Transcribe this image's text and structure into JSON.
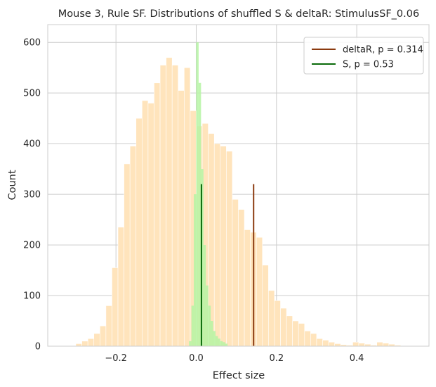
{
  "chart_data": {
    "type": "histogram",
    "title": "Mouse 3, Rule SF. Distributions of shuffled S & deltaR: StimulusSF_0.06",
    "xlabel": "Effect size",
    "ylabel": "Count",
    "xlim": [
      -0.37,
      0.58
    ],
    "ylim": [
      0,
      635
    ],
    "xticks": [
      -0.2,
      0.0,
      0.2,
      0.4
    ],
    "xtick_labels": [
      "−0.2",
      "0.0",
      "0.2",
      "0.4"
    ],
    "yticks": [
      0,
      100,
      200,
      300,
      400,
      500,
      600
    ],
    "ytick_labels": [
      "0",
      "100",
      "200",
      "300",
      "400",
      "500",
      "600"
    ],
    "grid": true,
    "legend_position": "top-right",
    "colors": {
      "deltaR_hist": "#ffe4bc",
      "S_hist": "#b5f5a3",
      "deltaR_line": "#8b3a0f",
      "S_line": "#0a6a0a",
      "grid": "#cccccc",
      "axes_edge": "#cccccc"
    },
    "series": [
      {
        "name": "deltaR, p = 0.314",
        "kind": "histogram",
        "bin_edges": [
          -0.3,
          -0.285,
          -0.27,
          -0.255,
          -0.24,
          -0.225,
          -0.21,
          -0.195,
          -0.18,
          -0.165,
          -0.15,
          -0.135,
          -0.12,
          -0.105,
          -0.09,
          -0.075,
          -0.06,
          -0.045,
          -0.03,
          -0.015,
          0.0,
          0.015,
          0.03,
          0.045,
          0.06,
          0.075,
          0.09,
          0.105,
          0.12,
          0.135,
          0.15,
          0.165,
          0.18,
          0.195,
          0.21,
          0.225,
          0.24,
          0.255,
          0.27,
          0.285,
          0.3,
          0.315,
          0.33,
          0.345,
          0.36,
          0.375,
          0.39,
          0.405,
          0.42,
          0.435,
          0.45,
          0.465,
          0.48,
          0.495,
          0.51,
          0.525
        ],
        "counts": [
          5,
          10,
          15,
          25,
          40,
          80,
          155,
          235,
          360,
          395,
          450,
          485,
          480,
          520,
          555,
          570,
          555,
          505,
          550,
          465,
          435,
          440,
          420,
          400,
          395,
          385,
          290,
          270,
          230,
          225,
          215,
          160,
          110,
          90,
          75,
          60,
          50,
          45,
          30,
          25,
          15,
          12,
          8,
          5,
          3,
          2,
          8,
          6,
          4,
          2,
          8,
          6,
          4,
          2,
          1
        ]
      },
      {
        "name": "S, p = 0.53",
        "kind": "histogram",
        "bin_edges": [
          -0.018,
          -0.012,
          -0.006,
          0.0,
          0.006,
          0.012,
          0.018,
          0.024,
          0.03,
          0.036,
          0.042,
          0.048,
          0.054,
          0.06,
          0.066,
          0.072,
          0.078
        ],
        "counts": [
          10,
          80,
          300,
          600,
          520,
          350,
          200,
          120,
          80,
          50,
          30,
          20,
          15,
          10,
          8,
          5
        ]
      }
    ],
    "vlines": [
      {
        "name": "deltaR, p = 0.314",
        "x": 0.143,
        "y_max": 320
      },
      {
        "name": "S, p = 0.53",
        "x": 0.013,
        "y_max": 320
      }
    ]
  }
}
